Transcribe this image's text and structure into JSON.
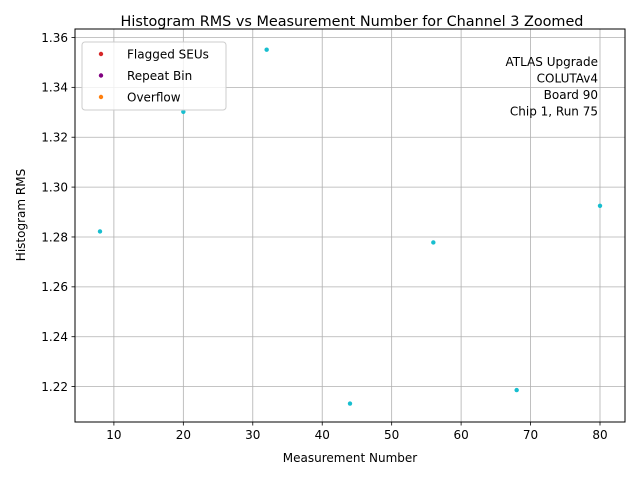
{
  "chart_data": {
    "type": "scatter",
    "title": "Histogram RMS vs Measurement Number for Channel 3 Zoomed",
    "xlabel": "Measurement Number",
    "ylabel": "Histogram RMS",
    "xlim": [
      4.4,
      83.6
    ],
    "ylim": [
      1.2058,
      1.3634
    ],
    "xticks": [
      10,
      20,
      30,
      40,
      50,
      60,
      70,
      80
    ],
    "yticks": [
      1.22,
      1.24,
      1.26,
      1.28,
      1.3,
      1.32,
      1.34,
      1.36
    ],
    "grid": true,
    "legend_position": "top-left",
    "series": [
      {
        "name": "",
        "color": "#17becf",
        "x": [
          8,
          20,
          32,
          44,
          56,
          68,
          80
        ],
        "y": [
          1.2822,
          1.3302,
          1.3551,
          1.2132,
          1.2778,
          1.2186,
          1.2925
        ]
      },
      {
        "name": "Flagged SEUs",
        "color": "#d62728",
        "x": [],
        "y": []
      },
      {
        "name": "Repeat Bin",
        "color": "#800080",
        "x": [],
        "y": []
      },
      {
        "name": "Overflow",
        "color": "#ff7f0e",
        "x": [],
        "y": []
      }
    ],
    "annotation": [
      "ATLAS Upgrade",
      "COLUTAv4",
      "Board 90",
      "Chip 1, Run 75"
    ]
  }
}
